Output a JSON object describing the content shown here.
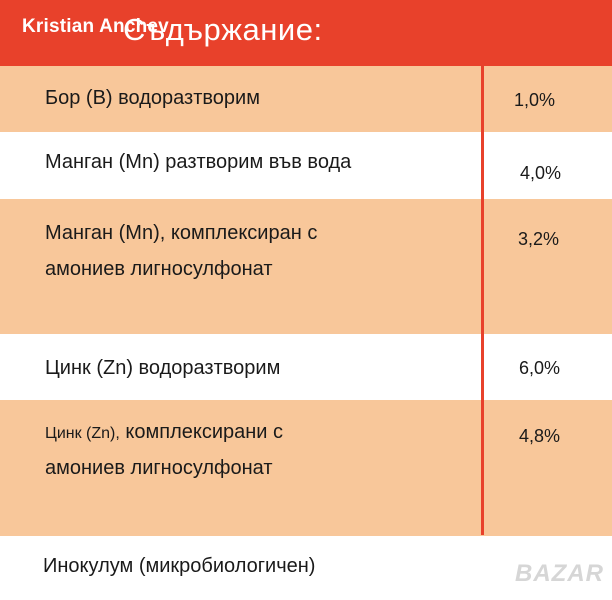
{
  "header": {
    "title": "Съдържание:",
    "watermark": "Kristian Anchev"
  },
  "rows": [
    {
      "label": "Бор (B) водоразтворим",
      "value": "1,0%"
    },
    {
      "label": "Манган (Mn) разтворим във вода",
      "value": "4,0%"
    },
    {
      "label_line1": "Манган (Mn), комплексиран с",
      "label_line2": "амониев лигносулфонат",
      "value": "3,2%"
    },
    {
      "label": "Цинк (Zn) водоразтворим",
      "value": "6,0%"
    },
    {
      "label_line1_small": "Цинк (Zn),",
      "label_line1_rest": "комплексирани с",
      "label_line2": "амониев лигносулфонат",
      "value": "4,8%"
    },
    {
      "label": "Инокулум (микробиологичен)",
      "value": ""
    }
  ],
  "footer": {
    "logo_text": "BAZAR"
  },
  "colors": {
    "header": "#e8412b",
    "peach_row": "#f8c79a",
    "divider": "#e8412b"
  }
}
